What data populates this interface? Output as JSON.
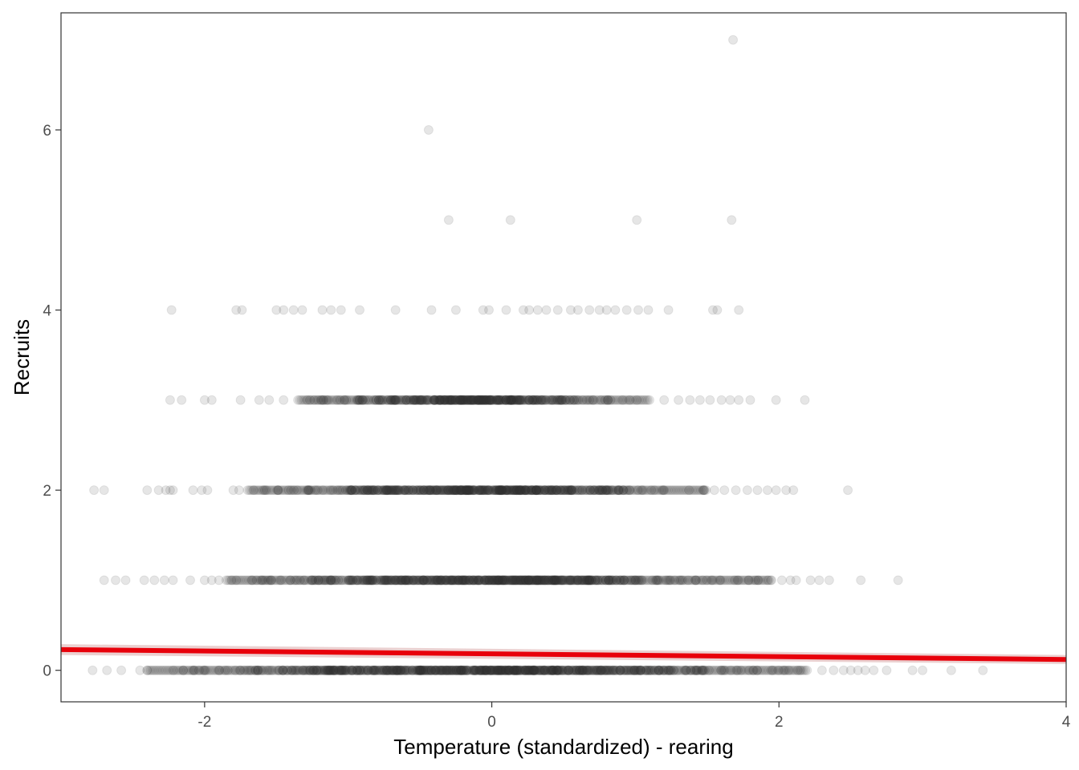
{
  "chart_data": {
    "type": "scatter",
    "title": "",
    "xlabel": "Temperature (standardized) - rearing",
    "ylabel": "Recruits",
    "xlim": [
      -3.0,
      4.0
    ],
    "ylim": [
      -0.35,
      7.3
    ],
    "x_ticks": [
      -2,
      0,
      2,
      4
    ],
    "x_tick_labels": [
      "-2",
      "0",
      "2",
      "4"
    ],
    "y_ticks": [
      0,
      2,
      4,
      6
    ],
    "y_tick_labels": [
      "0",
      "2",
      "4",
      "6"
    ],
    "grid": false,
    "legend": "none",
    "colors": {
      "points": "#333333",
      "fit_line": "#e8000b",
      "fit_ribbon": "#e8c8c8",
      "panel_border": "#333333"
    },
    "point_alpha": 0.12,
    "rows": [
      {
        "y": 0,
        "dense_range": [
          -2.4,
          2.2
        ],
        "scattered_x": [
          -2.78,
          -2.68,
          -2.58,
          -2.45,
          2.3,
          2.38,
          2.45,
          2.5,
          2.55,
          2.6,
          2.66,
          2.75,
          2.93,
          3.0,
          3.2,
          3.42
        ]
      },
      {
        "y": 1,
        "dense_range": [
          -1.85,
          1.95
        ],
        "scattered_x": [
          -2.7,
          -2.62,
          -2.55,
          -2.42,
          -2.35,
          -2.28,
          -2.22,
          -2.1,
          -2.0,
          -1.95,
          -1.9,
          2.02,
          2.08,
          2.12,
          2.22,
          2.28,
          2.35,
          2.57,
          2.83
        ]
      },
      {
        "y": 2,
        "dense_range": [
          -1.7,
          1.5
        ],
        "scattered_x": [
          -2.77,
          -2.7,
          -2.4,
          -2.32,
          -2.27,
          -2.24,
          -2.22,
          -2.08,
          -2.02,
          -1.98,
          -1.8,
          -1.76,
          1.55,
          1.62,
          1.7,
          1.78,
          1.85,
          1.92,
          1.98,
          2.05,
          2.1,
          2.48
        ]
      },
      {
        "y": 3,
        "dense_range": [
          -1.35,
          1.1
        ],
        "scattered_x": [
          -2.24,
          -2.16,
          -2.0,
          -1.95,
          -1.75,
          -1.62,
          -1.55,
          -1.45,
          1.2,
          1.3,
          1.38,
          1.45,
          1.52,
          1.6,
          1.66,
          1.72,
          1.8,
          1.98,
          2.18
        ]
      },
      {
        "y": 4,
        "dense_range": null,
        "scattered_x": [
          -2.23,
          -1.78,
          -1.74,
          -1.5,
          -1.45,
          -1.38,
          -1.32,
          -1.18,
          -1.12,
          -1.05,
          -0.92,
          -0.67,
          -0.42,
          -0.25,
          -0.06,
          -0.02,
          0.1,
          0.22,
          0.26,
          0.32,
          0.38,
          0.46,
          0.55,
          0.6,
          0.68,
          0.75,
          0.8,
          0.86,
          0.94,
          1.02,
          1.09,
          1.23,
          1.54,
          1.57,
          1.72
        ]
      },
      {
        "y": 5,
        "dense_range": null,
        "scattered_x": [
          -0.3,
          0.13,
          1.01,
          1.67
        ]
      },
      {
        "y": 6,
        "dense_range": null,
        "scattered_x": [
          -0.44
        ]
      },
      {
        "y": 7,
        "dense_range": null,
        "scattered_x": [
          1.68
        ]
      }
    ],
    "fit": {
      "method": "linear",
      "x": [
        -3.0,
        4.0
      ],
      "y": [
        0.23,
        0.12
      ],
      "ribbon_upper": [
        0.29,
        0.17
      ],
      "ribbon_lower": [
        0.17,
        0.07
      ]
    }
  }
}
